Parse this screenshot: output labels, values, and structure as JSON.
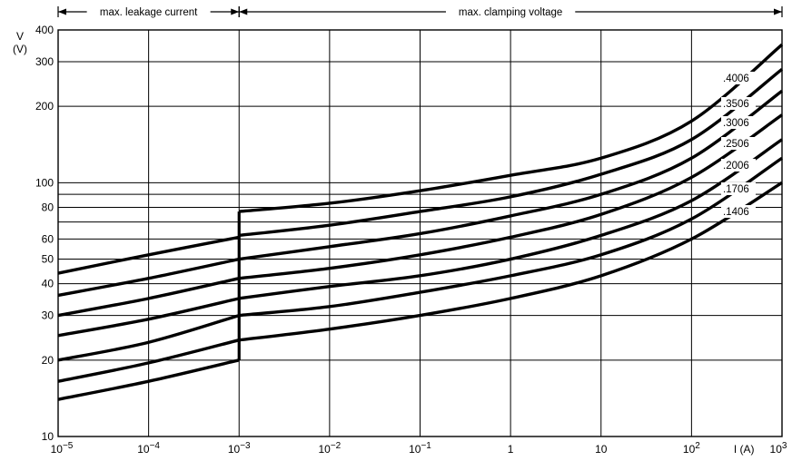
{
  "chart_data": {
    "type": "line",
    "x_scale": "log",
    "y_scale": "log",
    "xlim": [
      1e-05,
      1000
    ],
    "ylim": [
      10,
      400
    ],
    "xlabel": "I (A)",
    "ylabel": "V",
    "ylabel_unit": "(V)",
    "x_ticks": [
      {
        "value": 1e-05,
        "base": "10",
        "exp": "−5"
      },
      {
        "value": 0.0001,
        "base": "10",
        "exp": "−4"
      },
      {
        "value": 0.001,
        "base": "10",
        "exp": "−3"
      },
      {
        "value": 0.01,
        "base": "10",
        "exp": "−2"
      },
      {
        "value": 0.1,
        "base": "10",
        "exp": "−1"
      },
      {
        "value": 1,
        "base": "1",
        "exp": ""
      },
      {
        "value": 10,
        "base": "10",
        "exp": ""
      },
      {
        "value": 100,
        "base": "10",
        "exp": "2"
      },
      {
        "value": 1000,
        "base": "10",
        "exp": "3"
      }
    ],
    "y_ticks": [
      10,
      20,
      30,
      40,
      50,
      60,
      80,
      100,
      200,
      300,
      400
    ],
    "y_gridlines": [
      10,
      20,
      30,
      40,
      50,
      60,
      70,
      80,
      90,
      100,
      200,
      300,
      400
    ],
    "x_gridlines": [
      1e-05,
      0.0001,
      0.001,
      0.01,
      0.1,
      1,
      10,
      100,
      1000
    ],
    "grid": true,
    "ranges": [
      {
        "label": "max. leakage current",
        "from": 1e-05,
        "to": 0.001
      },
      {
        "label": "max. clamping voltage",
        "from": 0.001,
        "to": 1000
      }
    ],
    "boundary_line": {
      "x": 0.001,
      "y_from": 20,
      "y_to": 77
    },
    "series": [
      {
        "name": ".4006",
        "leakage": [
          [
            1e-05,
            44
          ],
          [
            0.0001,
            52
          ],
          [
            0.001,
            61
          ]
        ],
        "clamping": [
          [
            0.001,
            77
          ],
          [
            0.01,
            83
          ],
          [
            0.1,
            93
          ],
          [
            1,
            107
          ],
          [
            10,
            125
          ],
          [
            100,
            175
          ],
          [
            1000,
            350
          ]
        ]
      },
      {
        "name": ".3506",
        "leakage": [
          [
            1e-05,
            36
          ],
          [
            0.0001,
            42
          ],
          [
            0.001,
            50
          ]
        ],
        "clamping": [
          [
            0.001,
            62
          ],
          [
            0.01,
            68
          ],
          [
            0.1,
            77
          ],
          [
            1,
            88
          ],
          [
            10,
            108
          ],
          [
            100,
            148
          ],
          [
            1000,
            280
          ]
        ]
      },
      {
        "name": ".3006",
        "leakage": [
          [
            1e-05,
            30
          ],
          [
            0.0001,
            35
          ],
          [
            0.001,
            42
          ]
        ],
        "clamping": [
          [
            0.001,
            50
          ],
          [
            0.01,
            56
          ],
          [
            0.1,
            63
          ],
          [
            1,
            74
          ],
          [
            10,
            90
          ],
          [
            100,
            125
          ],
          [
            1000,
            230
          ]
        ]
      },
      {
        "name": ".2506",
        "leakage": [
          [
            1e-05,
            25
          ],
          [
            0.0001,
            29
          ],
          [
            0.001,
            35
          ]
        ],
        "clamping": [
          [
            0.001,
            42
          ],
          [
            0.01,
            46
          ],
          [
            0.1,
            52
          ],
          [
            1,
            61
          ],
          [
            10,
            75
          ],
          [
            100,
            105
          ],
          [
            1000,
            185
          ]
        ]
      },
      {
        "name": ".2006",
        "leakage": [
          [
            1e-05,
            20
          ],
          [
            0.0001,
            23.5
          ],
          [
            0.001,
            30
          ]
        ],
        "clamping": [
          [
            0.001,
            35
          ],
          [
            0.01,
            39
          ],
          [
            0.1,
            43
          ],
          [
            1,
            50
          ],
          [
            10,
            62
          ],
          [
            100,
            85
          ],
          [
            1000,
            148
          ]
        ]
      },
      {
        "name": ".1706",
        "leakage": [
          [
            1e-05,
            16.5
          ],
          [
            0.0001,
            19.5
          ],
          [
            0.001,
            24
          ]
        ],
        "clamping": [
          [
            0.001,
            30
          ],
          [
            0.01,
            32.5
          ],
          [
            0.1,
            37
          ],
          [
            1,
            43
          ],
          [
            10,
            52
          ],
          [
            100,
            72
          ],
          [
            1000,
            125
          ]
        ]
      },
      {
        "name": ".1406",
        "leakage": [
          [
            1e-05,
            14
          ],
          [
            0.0001,
            16.5
          ],
          [
            0.001,
            20
          ]
        ],
        "clamping": [
          [
            0.001,
            24
          ],
          [
            0.01,
            26.5
          ],
          [
            0.1,
            30
          ],
          [
            1,
            35
          ],
          [
            10,
            43
          ],
          [
            100,
            60
          ],
          [
            1000,
            100
          ]
        ]
      }
    ],
    "colors": {
      "line": "#000000",
      "grid": "#000000",
      "background": "#ffffff"
    }
  }
}
